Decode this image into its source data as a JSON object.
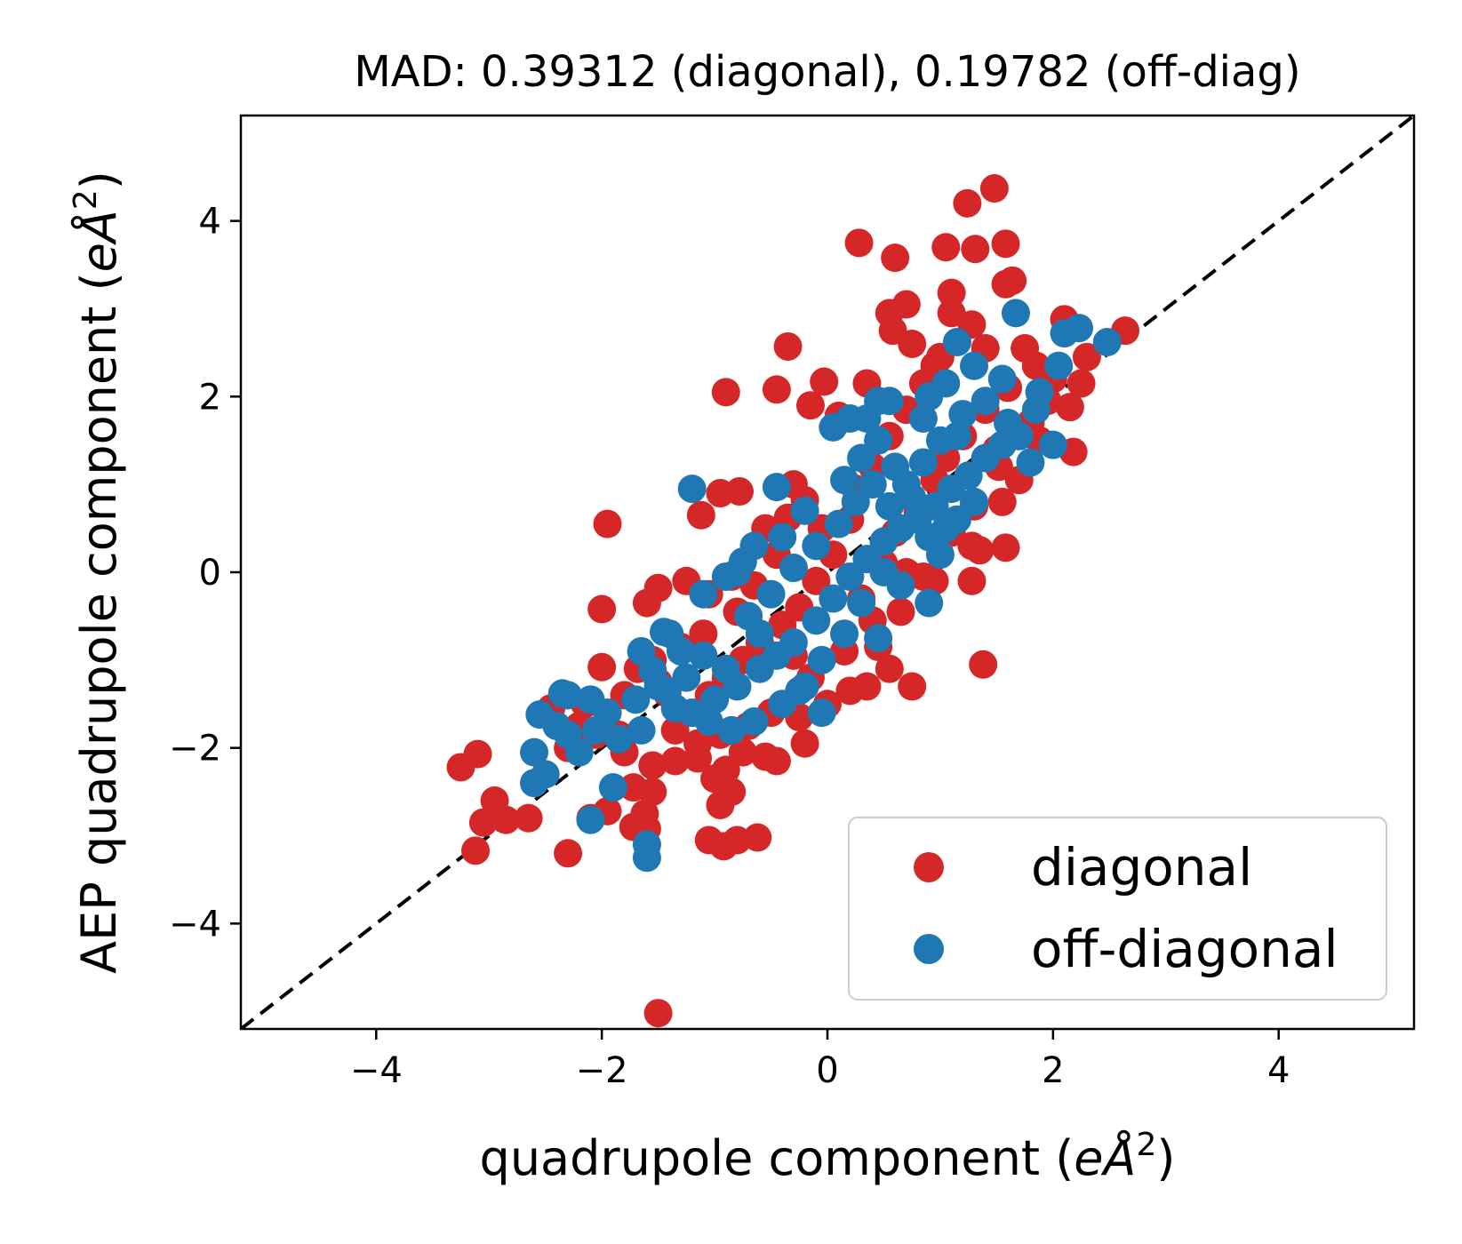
{
  "chart_data": {
    "type": "scatter",
    "title": "MAD: 0.39312 (diagonal), 0.19782 (off-diag)",
    "xlabel_text": "quadrupole component (",
    "xlabel_unit": "eÅ",
    "xlabel_sup": "2",
    "xlabel_close": ")",
    "ylabel_text": "AEP quadrupole component (",
    "ylabel_unit": "eÅ",
    "ylabel_sup": "2",
    "ylabel_close": ")",
    "xlim": [
      -5.2,
      5.2
    ],
    "ylim": [
      -5.2,
      5.2
    ],
    "xticks": [
      -4,
      -2,
      0,
      2,
      4
    ],
    "yticks": [
      -4,
      -2,
      0,
      2,
      4
    ],
    "xtick_labels": [
      "−4",
      "−2",
      "0",
      "2",
      "4"
    ],
    "ytick_labels": [
      "−4",
      "−2",
      "0",
      "2",
      "4"
    ],
    "grid": false,
    "legend_position": "lower-right",
    "reference_line": {
      "style": "dashed",
      "color": "#000000",
      "from": [
        -5.2,
        -5.2
      ],
      "to": [
        5.2,
        5.2
      ]
    },
    "series": [
      {
        "name": "diagonal",
        "color": "#d62728",
        "points": [
          [
            1.48,
            4.37
          ],
          [
            1.24,
            4.2
          ],
          [
            0.28,
            3.75
          ],
          [
            0.6,
            3.58
          ],
          [
            1.05,
            3.7
          ],
          [
            1.31,
            3.68
          ],
          [
            1.58,
            3.74
          ],
          [
            1.58,
            3.28
          ],
          [
            1.64,
            3.32
          ],
          [
            1.1,
            3.18
          ],
          [
            0.55,
            2.95
          ],
          [
            0.7,
            3.05
          ],
          [
            1.1,
            2.95
          ],
          [
            1.28,
            2.82
          ],
          [
            0.58,
            2.75
          ],
          [
            2.1,
            2.88
          ],
          [
            2.64,
            2.75
          ],
          [
            -0.35,
            2.57
          ],
          [
            -0.45,
            2.08
          ],
          [
            -0.03,
            2.17
          ],
          [
            -0.9,
            2.05
          ],
          [
            0.75,
            2.6
          ],
          [
            1.4,
            2.55
          ],
          [
            1.75,
            2.55
          ],
          [
            2.3,
            2.45
          ],
          [
            2.15,
            1.88
          ],
          [
            2.18,
            1.37
          ],
          [
            1.7,
            1.6
          ],
          [
            1.52,
            1.2
          ],
          [
            1.88,
            1.5
          ],
          [
            0.95,
            2.35
          ],
          [
            0.35,
            2.15
          ],
          [
            0.1,
            1.78
          ],
          [
            -0.15,
            1.9
          ],
          [
            -0.95,
            0.9
          ],
          [
            -0.78,
            0.92
          ],
          [
            -1.12,
            0.65
          ],
          [
            -0.3,
            1.0
          ],
          [
            -0.2,
            0.82
          ],
          [
            -0.35,
            0.62
          ],
          [
            -0.55,
            0.5
          ],
          [
            -1.95,
            0.55
          ],
          [
            -2.0,
            -0.42
          ],
          [
            -1.5,
            -0.18
          ],
          [
            -1.6,
            -0.35
          ],
          [
            -1.25,
            -0.1
          ],
          [
            -1.05,
            -0.25
          ],
          [
            -0.85,
            -0.05
          ],
          [
            -2.0,
            -1.08
          ],
          [
            -1.68,
            -1.1
          ],
          [
            -1.5,
            -1.25
          ],
          [
            -1.42,
            -1.38
          ],
          [
            -2.45,
            -1.55
          ],
          [
            -2.2,
            -1.75
          ],
          [
            -2.05,
            -1.85
          ],
          [
            -1.8,
            -2.05
          ],
          [
            -1.55,
            -2.2
          ],
          [
            -1.35,
            -2.15
          ],
          [
            -1.15,
            -2.12
          ],
          [
            -1.0,
            -2.35
          ],
          [
            -0.9,
            -2.25
          ],
          [
            -0.75,
            -2.05
          ],
          [
            -0.55,
            -2.1
          ],
          [
            -0.45,
            -2.15
          ],
          [
            -0.2,
            -1.95
          ],
          [
            -3.25,
            -2.22
          ],
          [
            -3.1,
            -2.07
          ],
          [
            -2.95,
            -2.6
          ],
          [
            -3.05,
            -2.85
          ],
          [
            -2.85,
            -2.82
          ],
          [
            -2.65,
            -2.8
          ],
          [
            -3.12,
            -3.17
          ],
          [
            -2.3,
            -3.2
          ],
          [
            -2.1,
            -2.8
          ],
          [
            -1.95,
            -2.72
          ],
          [
            -1.72,
            -2.45
          ],
          [
            -1.55,
            -2.5
          ],
          [
            -1.62,
            -2.75
          ],
          [
            -1.72,
            -2.9
          ],
          [
            -1.6,
            -2.92
          ],
          [
            -1.05,
            -3.05
          ],
          [
            -0.92,
            -3.12
          ],
          [
            -0.8,
            -3.05
          ],
          [
            -0.62,
            -3.02
          ],
          [
            -0.95,
            -2.65
          ],
          [
            -0.85,
            -2.5
          ],
          [
            -1.5,
            -5.02
          ],
          [
            1.38,
            -1.05
          ],
          [
            1.28,
            -0.1
          ],
          [
            1.35,
            0.25
          ],
          [
            1.58,
            0.28
          ],
          [
            1.28,
            0.3
          ],
          [
            0.95,
            -0.1
          ],
          [
            0.75,
            -1.3
          ],
          [
            0.55,
            -1.1
          ],
          [
            0.35,
            -1.3
          ],
          [
            0.2,
            -1.35
          ],
          [
            0.45,
            -0.85
          ],
          [
            0.65,
            -0.45
          ],
          [
            0.4,
            -0.55
          ],
          [
            0.7,
            0.0
          ],
          [
            0.85,
            -0.05
          ],
          [
            1.1,
            0.45
          ],
          [
            1.3,
            0.75
          ],
          [
            1.55,
            0.8
          ],
          [
            1.7,
            1.05
          ],
          [
            0.2,
            0.6
          ],
          [
            0.05,
            0.2
          ],
          [
            -0.1,
            -0.1
          ],
          [
            -0.25,
            -0.4
          ],
          [
            -0.4,
            -0.6
          ],
          [
            -0.6,
            -0.8
          ],
          [
            -0.75,
            -1.0
          ],
          [
            -0.9,
            -1.2
          ],
          [
            -1.05,
            -1.4
          ],
          [
            -1.2,
            -1.6
          ],
          [
            -1.35,
            -1.8
          ],
          [
            -0.3,
            -0.95
          ],
          [
            -0.15,
            -1.2
          ],
          [
            0.0,
            -1.5
          ],
          [
            -0.5,
            -1.6
          ],
          [
            -0.7,
            -1.75
          ],
          [
            -0.95,
            -1.85
          ],
          [
            -1.15,
            -1.95
          ],
          [
            -0.25,
            -1.65
          ],
          [
            0.15,
            -0.9
          ],
          [
            0.3,
            -0.3
          ],
          [
            0.5,
            0.1
          ],
          [
            0.6,
            0.45
          ],
          [
            0.8,
            0.7
          ],
          [
            0.95,
            1.05
          ],
          [
            1.05,
            1.3
          ],
          [
            1.2,
            1.55
          ],
          [
            1.4,
            1.85
          ],
          [
            1.6,
            2.1
          ],
          [
            1.85,
            2.35
          ],
          [
            2.0,
            2.2
          ],
          [
            0.4,
            1.2
          ],
          [
            0.55,
            1.55
          ],
          [
            0.7,
            1.85
          ],
          [
            0.85,
            2.15
          ],
          [
            1.0,
            2.45
          ],
          [
            0.25,
            0.95
          ],
          [
            -0.05,
            0.5
          ],
          [
            -0.45,
            0.2
          ],
          [
            -0.65,
            -0.15
          ],
          [
            -0.8,
            -0.45
          ],
          [
            -1.1,
            -0.7
          ],
          [
            -1.3,
            -0.85
          ],
          [
            -1.55,
            -1.0
          ],
          [
            -1.8,
            -1.4
          ],
          [
            -1.95,
            -1.6
          ],
          [
            -2.15,
            -1.5
          ],
          [
            -2.3,
            -2.0
          ],
          [
            -1.85,
            -1.85
          ],
          [
            1.5,
            1.4
          ],
          [
            1.8,
            1.7
          ],
          [
            1.95,
            1.95
          ],
          [
            2.25,
            2.15
          ]
        ]
      },
      {
        "name": "off-diagonal",
        "color": "#1f77b4",
        "points": [
          [
            1.67,
            2.95
          ],
          [
            2.1,
            2.72
          ],
          [
            2.23,
            2.78
          ],
          [
            2.48,
            2.62
          ],
          [
            1.15,
            2.62
          ],
          [
            1.3,
            2.35
          ],
          [
            1.55,
            2.2
          ],
          [
            1.88,
            2.05
          ],
          [
            2.05,
            2.35
          ],
          [
            1.85,
            1.85
          ],
          [
            1.7,
            1.55
          ],
          [
            2.0,
            1.45
          ],
          [
            1.8,
            1.25
          ],
          [
            1.05,
            2.15
          ],
          [
            0.9,
            2.0
          ],
          [
            0.45,
            1.95
          ],
          [
            0.2,
            1.75
          ],
          [
            0.05,
            1.65
          ],
          [
            -1.2,
            0.95
          ],
          [
            -0.45,
            0.97
          ],
          [
            -0.2,
            0.7
          ],
          [
            -0.4,
            0.4
          ],
          [
            -0.65,
            0.3
          ],
          [
            -0.75,
            0.12
          ],
          [
            -0.9,
            -0.05
          ],
          [
            -1.1,
            -0.25
          ],
          [
            -1.45,
            -0.68
          ],
          [
            -1.65,
            -0.9
          ],
          [
            -1.55,
            -1.12
          ],
          [
            -1.42,
            -1.35
          ],
          [
            -2.3,
            -1.4
          ],
          [
            -2.55,
            -1.62
          ],
          [
            -2.35,
            -1.38
          ],
          [
            -2.1,
            -1.45
          ],
          [
            -2.05,
            -1.8
          ],
          [
            -2.3,
            -1.85
          ],
          [
            -2.6,
            -2.05
          ],
          [
            -2.5,
            -2.3
          ],
          [
            -2.6,
            -2.4
          ],
          [
            -2.2,
            -2.05
          ],
          [
            -1.85,
            -1.9
          ],
          [
            -1.65,
            -1.8
          ],
          [
            -1.9,
            -2.45
          ],
          [
            -2.1,
            -2.82
          ],
          [
            -1.6,
            -3.1
          ],
          [
            -1.6,
            -3.25
          ],
          [
            -1.2,
            -1.6
          ],
          [
            -1.0,
            -1.45
          ],
          [
            -0.8,
            -1.3
          ],
          [
            -0.6,
            -1.1
          ],
          [
            -0.45,
            -0.95
          ],
          [
            -0.3,
            -0.8
          ],
          [
            -0.1,
            -0.55
          ],
          [
            0.05,
            -0.3
          ],
          [
            0.2,
            -0.05
          ],
          [
            0.35,
            0.15
          ],
          [
            0.5,
            0.35
          ],
          [
            0.65,
            0.5
          ],
          [
            0.8,
            0.6
          ],
          [
            0.95,
            0.75
          ],
          [
            1.1,
            0.95
          ],
          [
            1.25,
            1.1
          ],
          [
            1.4,
            1.3
          ],
          [
            1.55,
            1.45
          ],
          [
            0.15,
            1.05
          ],
          [
            0.3,
            1.3
          ],
          [
            0.45,
            1.5
          ],
          [
            0.6,
            1.2
          ],
          [
            0.75,
            0.85
          ],
          [
            0.9,
            0.4
          ],
          [
            1.0,
            0.2
          ],
          [
            1.15,
            0.6
          ],
          [
            0.5,
            0.0
          ],
          [
            0.3,
            -0.35
          ],
          [
            0.15,
            -0.7
          ],
          [
            -0.05,
            -1.0
          ],
          [
            -0.2,
            -1.3
          ],
          [
            -0.4,
            -1.5
          ],
          [
            -0.65,
            -1.7
          ],
          [
            -0.85,
            -1.8
          ],
          [
            -1.05,
            -1.7
          ],
          [
            -1.35,
            -1.55
          ],
          [
            -1.5,
            -1.3
          ],
          [
            -0.05,
            -1.6
          ],
          [
            -0.25,
            -1.35
          ],
          [
            0.45,
            -0.75
          ],
          [
            0.9,
            -0.35
          ],
          [
            0.65,
            -0.15
          ],
          [
            -0.9,
            -1.1
          ],
          [
            -1.1,
            -0.95
          ],
          [
            -0.7,
            -0.5
          ],
          [
            -0.5,
            -0.25
          ],
          [
            -0.3,
            0.05
          ],
          [
            -0.1,
            0.3
          ],
          [
            0.1,
            0.55
          ],
          [
            0.25,
            0.8
          ],
          [
            0.4,
            1.0
          ],
          [
            0.55,
            0.75
          ],
          [
            0.7,
            1.0
          ],
          [
            0.85,
            1.25
          ],
          [
            1.0,
            1.5
          ],
          [
            1.2,
            1.8
          ],
          [
            1.4,
            1.95
          ],
          [
            1.6,
            1.7
          ],
          [
            1.3,
            0.8
          ],
          [
            1.05,
            0.5
          ],
          [
            -0.8,
            0.0
          ],
          [
            -0.6,
            -0.7
          ],
          [
            -1.25,
            -1.2
          ],
          [
            -1.7,
            -1.45
          ],
          [
            -1.95,
            -1.6
          ],
          [
            -2.4,
            -1.75
          ],
          [
            -1.4,
            -0.7
          ],
          [
            -1.3,
            -0.9
          ],
          [
            0.85,
            1.75
          ],
          [
            1.15,
            1.55
          ],
          [
            0.35,
            1.75
          ],
          [
            0.55,
            1.95
          ]
        ]
      }
    ]
  }
}
